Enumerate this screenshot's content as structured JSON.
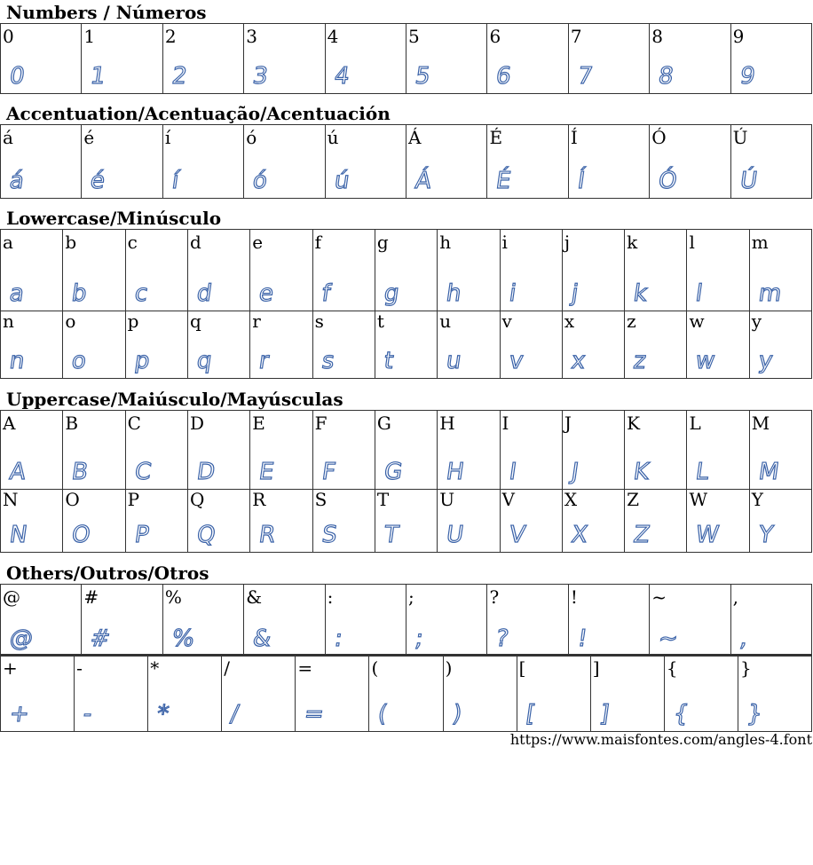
{
  "sections": [
    {
      "title": "Numbers / Números",
      "rows": [
        [
          "0",
          "1",
          "2",
          "3",
          "4",
          "5",
          "6",
          "7",
          "8",
          "9"
        ]
      ]
    },
    {
      "title": "Accentuation/Acentuação/Acentuación",
      "rows": [
        [
          "á",
          "é",
          "í",
          "ó",
          "ú",
          "Á",
          "É",
          "Í",
          "Ó",
          "Ú"
        ]
      ]
    },
    {
      "title": "Lowercase/Minúsculo",
      "rows": [
        [
          "a",
          "b",
          "c",
          "d",
          "e",
          "f",
          "g",
          "h",
          "i",
          "j",
          "k",
          "l",
          "m"
        ],
        [
          "n",
          "o",
          "p",
          "q",
          "r",
          "s",
          "t",
          "u",
          "v",
          "x",
          "z",
          "w",
          "y"
        ]
      ]
    },
    {
      "title": "Uppercase/Maiúsculo/Mayúsculas",
      "rows": [
        [
          "A",
          "B",
          "C",
          "D",
          "E",
          "F",
          "G",
          "H",
          "I",
          "J",
          "K",
          "L",
          "M"
        ],
        [
          "N",
          "O",
          "P",
          "Q",
          "R",
          "S",
          "T",
          "U",
          "V",
          "X",
          "Z",
          "W",
          "Y"
        ]
      ]
    },
    {
      "title": "Others/Outros/Otros",
      "rows": [
        [
          "@",
          "#",
          "%",
          "&",
          ":",
          ";",
          "?",
          "!",
          "~",
          ","
        ],
        [
          "+",
          "-",
          "*",
          "/",
          "=",
          "(",
          ")",
          "[",
          "]",
          "{",
          "}"
        ]
      ]
    }
  ],
  "glyph_color": "#3a62a8",
  "footer_url": "https://www.maisfontes.com/angles-4.font"
}
